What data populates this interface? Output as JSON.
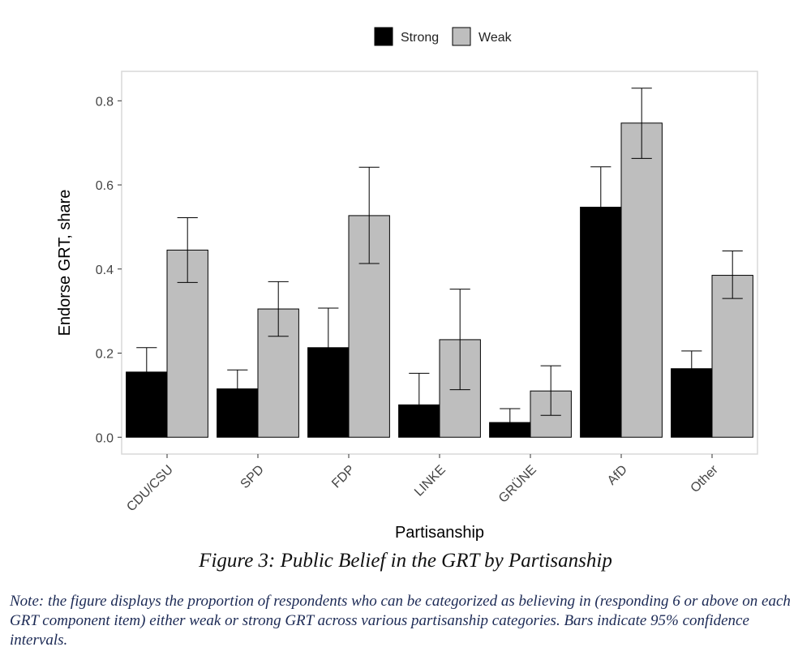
{
  "chart_data": {
    "type": "bar",
    "categories": [
      "CDU/CSU",
      "SPD",
      "FDP",
      "LINKE",
      "GRÜNE",
      "AfD",
      "Other"
    ],
    "series": [
      {
        "name": "Strong",
        "color": "#000000",
        "values": [
          0.155,
          0.115,
          0.213,
          0.077,
          0.035,
          0.547,
          0.163
        ],
        "ci_low": [
          0.1,
          0.07,
          0.13,
          0.01,
          0.005,
          0.45,
          0.12
        ],
        "ci_high": [
          0.213,
          0.16,
          0.307,
          0.152,
          0.068,
          0.643,
          0.205
        ]
      },
      {
        "name": "Weak",
        "color": "#bebebe",
        "values": [
          0.445,
          0.305,
          0.527,
          0.232,
          0.11,
          0.747,
          0.385
        ],
        "ci_low": [
          0.368,
          0.24,
          0.413,
          0.113,
          0.052,
          0.663,
          0.33
        ],
        "ci_high": [
          0.522,
          0.37,
          0.642,
          0.352,
          0.17,
          0.83,
          0.443
        ]
      }
    ],
    "xlabel": "Partisanship",
    "ylabel": "Endorse GRT, share",
    "ylim": [
      -0.04,
      0.87
    ],
    "yticks": [
      0.0,
      0.2,
      0.4,
      0.6,
      0.8
    ],
    "ytick_labels": [
      "0.0",
      "0.2",
      "0.4",
      "0.6",
      "0.8"
    ],
    "legend_position": "top",
    "grid": false
  },
  "caption": "Figure 3: Public Belief in the GRT by Partisanship",
  "note": "Note: the figure displays the proportion of respondents who can be categorized as believing in (responding 6 or above on each GRT component item) either weak or strong GRT across various partisanship categories. Bars indicate 95% confidence intervals."
}
